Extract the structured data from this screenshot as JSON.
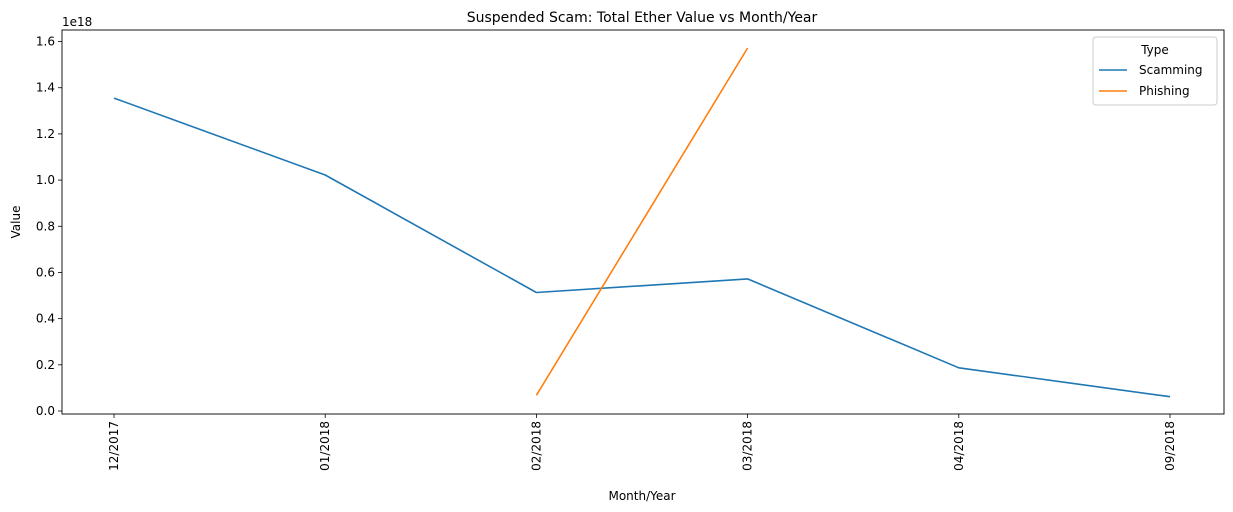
{
  "chart_data": {
    "type": "line",
    "title": "Suspended Scam: Total Ether Value vs Month/Year",
    "xlabel": "Month/Year",
    "ylabel": "Value",
    "y_offset_label": "1e18",
    "categories": [
      "12/2017",
      "01/2018",
      "02/2018",
      "03/2018",
      "04/2018",
      "09/2018"
    ],
    "y_ticks": [
      "0.0",
      "0.2",
      "0.4",
      "0.6",
      "0.8",
      "1.0",
      "1.2",
      "1.4",
      "1.6"
    ],
    "ylim": [
      -0.013,
      1.65
    ],
    "grid": false,
    "legend": {
      "title": "Type",
      "position": "top-right"
    },
    "series": [
      {
        "name": "Scamming",
        "color": "#1f77b4",
        "values": [
          1.355,
          1.022,
          0.513,
          0.572,
          0.187,
          0.062
        ]
      },
      {
        "name": "Phishing",
        "color": "#ff7f0e",
        "values": [
          null,
          null,
          0.068,
          1.572,
          null,
          null
        ]
      }
    ]
  }
}
